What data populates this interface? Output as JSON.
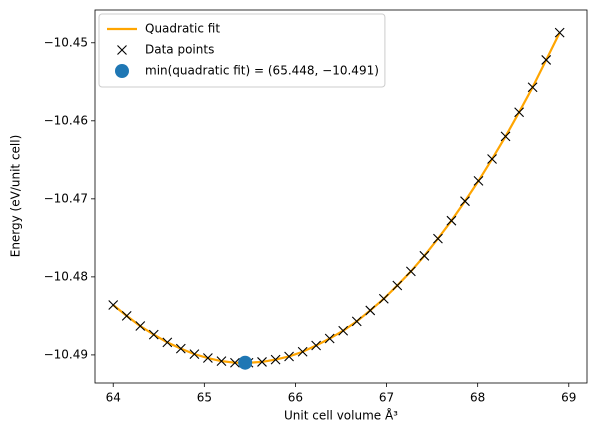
{
  "chart_data": {
    "type": "line",
    "xlabel": "Unit cell volume Å³",
    "ylabel": "Energy (eV/unit cell)",
    "xlim": [
      63.8,
      69.2
    ],
    "ylim": [
      -10.4936,
      -10.4458
    ],
    "xticks": [
      64,
      65,
      66,
      67,
      68,
      69
    ],
    "yticks": [
      {
        "value": -10.49,
        "label": "−10.49"
      },
      {
        "value": -10.48,
        "label": "−10.48"
      },
      {
        "value": -10.47,
        "label": "−10.47"
      },
      {
        "value": -10.46,
        "label": "−10.46"
      },
      {
        "value": -10.45,
        "label": "−10.45"
      }
    ],
    "legend": "upper left",
    "series": [
      {
        "name": "Quadratic fit",
        "color": "#ffa500",
        "style": "line",
        "x": [
          64.0,
          64.148,
          64.297,
          64.445,
          64.594,
          64.742,
          64.891,
          65.039,
          65.188,
          65.336,
          65.485,
          65.633,
          65.782,
          65.93,
          66.079,
          66.227,
          66.376,
          66.524,
          66.673,
          66.821,
          66.97,
          67.118,
          67.267,
          67.415,
          67.564,
          67.712,
          67.861,
          68.009,
          68.158,
          68.306,
          68.455,
          68.603,
          68.752,
          68.9
        ],
        "values": [
          -10.4836,
          -10.485,
          -10.4863,
          -10.4874,
          -10.4884,
          -10.4892,
          -10.4899,
          -10.4904,
          -10.4908,
          -10.491,
          -10.491,
          -10.4909,
          -10.4906,
          -10.4902,
          -10.4896,
          -10.4888,
          -10.4879,
          -10.4869,
          -10.4857,
          -10.4843,
          -10.4828,
          -10.4811,
          -10.4793,
          -10.4773,
          -10.4751,
          -10.4728,
          -10.4703,
          -10.4677,
          -10.4649,
          -10.462,
          -10.4589,
          -10.4557,
          -10.4522,
          -10.4487
        ]
      },
      {
        "name": "Data points",
        "color": "#000000",
        "style": "x",
        "x": [
          64.0,
          64.148,
          64.297,
          64.445,
          64.594,
          64.742,
          64.891,
          65.039,
          65.188,
          65.336,
          65.485,
          65.633,
          65.782,
          65.93,
          66.079,
          66.227,
          66.376,
          66.524,
          66.673,
          66.821,
          66.97,
          67.118,
          67.267,
          67.415,
          67.564,
          67.712,
          67.861,
          68.009,
          68.158,
          68.306,
          68.455,
          68.603,
          68.752,
          68.9
        ],
        "values": [
          -10.4836,
          -10.485,
          -10.4863,
          -10.4874,
          -10.4884,
          -10.4892,
          -10.4899,
          -10.4904,
          -10.4908,
          -10.491,
          -10.491,
          -10.4909,
          -10.4906,
          -10.4902,
          -10.4896,
          -10.4888,
          -10.4879,
          -10.4869,
          -10.4857,
          -10.4843,
          -10.4828,
          -10.4811,
          -10.4793,
          -10.4773,
          -10.4751,
          -10.4728,
          -10.4703,
          -10.4677,
          -10.4649,
          -10.462,
          -10.4589,
          -10.4557,
          -10.4522,
          -10.4487
        ]
      },
      {
        "name": "min(quadratic fit) = (65.448, −10.491)",
        "color": "#1f77b4",
        "style": "o",
        "x": [
          65.448
        ],
        "values": [
          -10.491
        ]
      }
    ]
  }
}
